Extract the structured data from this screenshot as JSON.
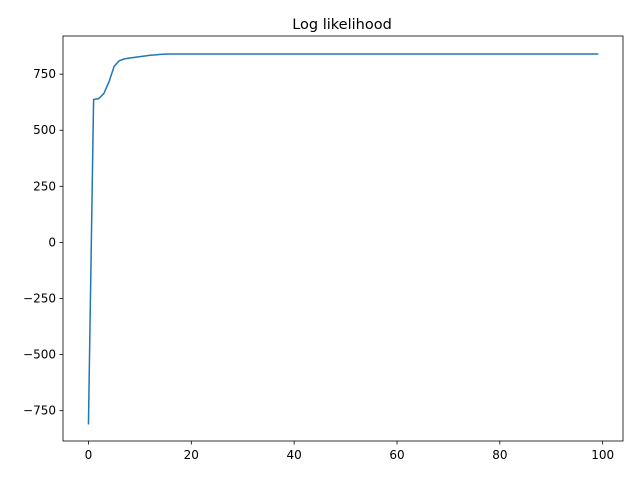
{
  "chart_data": {
    "type": "line",
    "title": "Log likelihood",
    "xlabel": "",
    "ylabel": "",
    "xlim": [
      -4.95,
      103.95
    ],
    "ylim": [
      -885,
      920
    ],
    "xticks": [
      0,
      20,
      40,
      60,
      80,
      100
    ],
    "xtick_labels": [
      "0",
      "20",
      "40",
      "60",
      "80",
      "100"
    ],
    "yticks": [
      -750,
      -500,
      -250,
      0,
      250,
      500,
      750
    ],
    "ytick_labels": [
      "−750",
      "−500",
      "−250",
      "0",
      "250",
      "500",
      "750"
    ],
    "grid": false,
    "legend": "none",
    "series": [
      {
        "color": "#1f77b4",
        "x": [
          0,
          1,
          2,
          3,
          4,
          5,
          6,
          7,
          8,
          9,
          10,
          11,
          12,
          13,
          14,
          15,
          16,
          17,
          18,
          19,
          20,
          25,
          30,
          35,
          40,
          45,
          50,
          55,
          60,
          65,
          70,
          75,
          80,
          85,
          90,
          95,
          99
        ],
        "y": [
          -808,
          637,
          641,
          664,
          716,
          785,
          810,
          818,
          822,
          825,
          828,
          831,
          834,
          836,
          838,
          839,
          840,
          840,
          840,
          840,
          840,
          840,
          840,
          840,
          840,
          840,
          840,
          840,
          840,
          840,
          840,
          840,
          840,
          840,
          840,
          840,
          840
        ]
      }
    ]
  }
}
